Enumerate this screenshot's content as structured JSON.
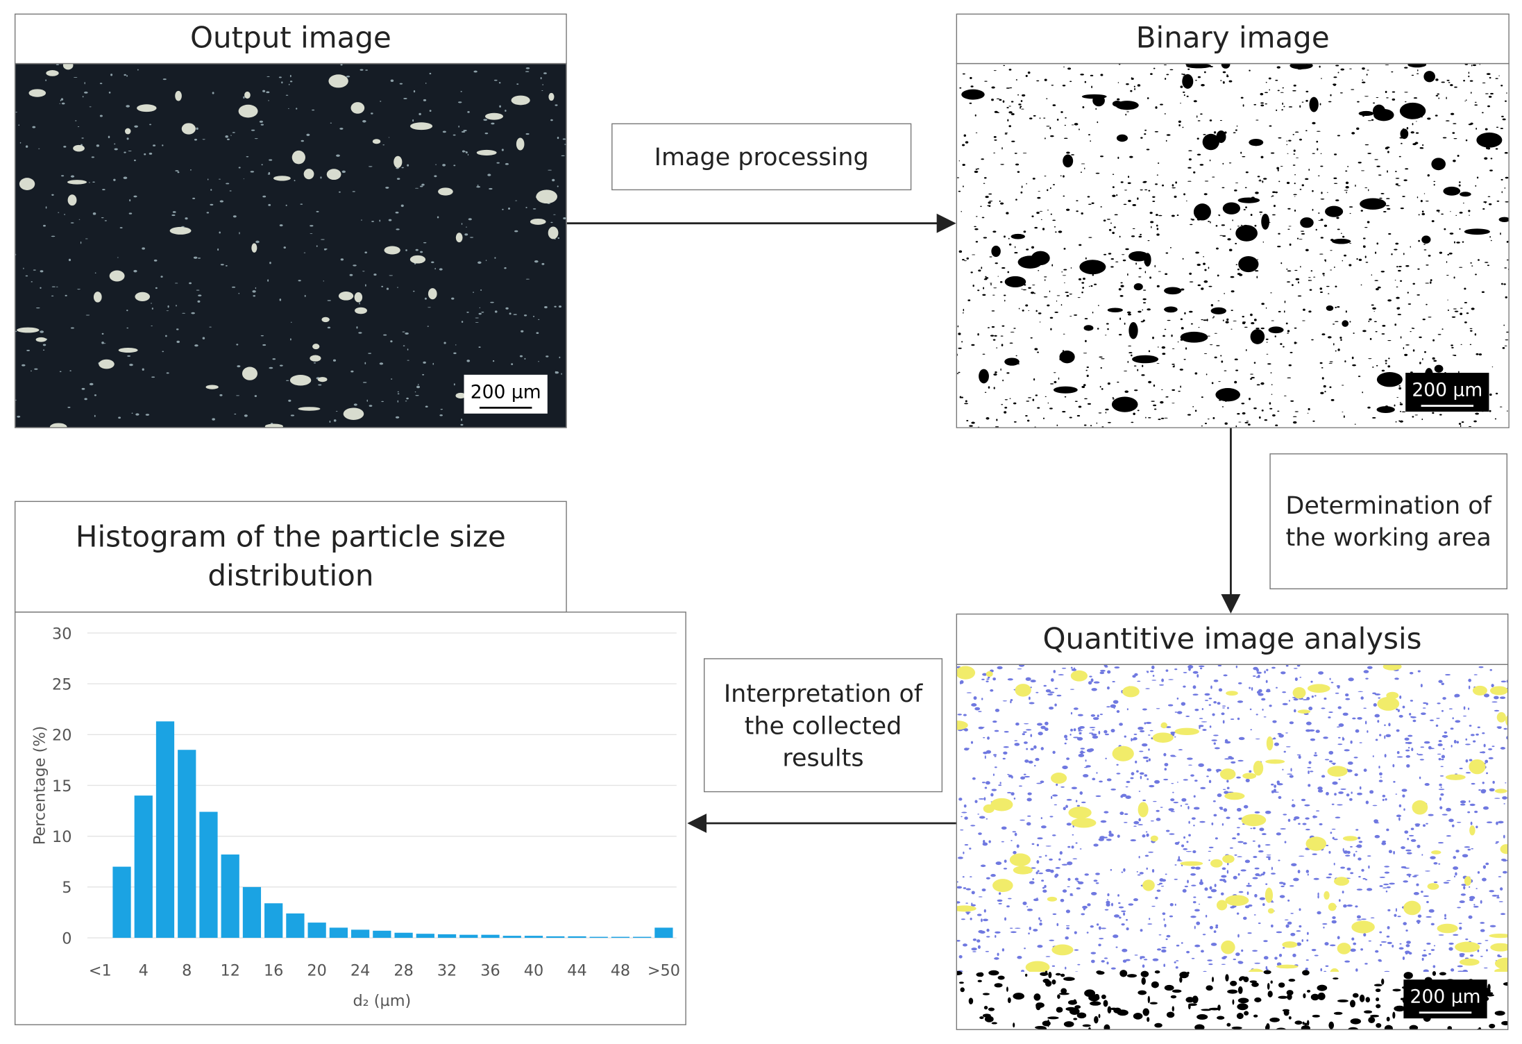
{
  "nodes": [
    {
      "label": "Output image",
      "scale_bar": "200 µm"
    },
    {
      "label": "Binary image",
      "scale_bar": "200 µm"
    },
    {
      "label": "Quantitive image analysis",
      "scale_bar": "200 µm"
    },
    {
      "label": "Histogram of the particle size distribution"
    }
  ],
  "edges": [
    {
      "label": "Image processing"
    },
    {
      "label": "Determination of the working area"
    },
    {
      "label": "Interpretation of the collected results"
    }
  ],
  "chart_data": {
    "type": "bar",
    "categories": [
      "<1",
      null,
      "4",
      null,
      "8",
      null,
      "12",
      null,
      "16",
      null,
      "20",
      null,
      "24",
      null,
      "28",
      null,
      "32",
      null,
      "36",
      null,
      "40",
      null,
      "44",
      null,
      "48",
      null,
      ">50"
    ],
    "values": [
      0,
      7,
      14,
      21.3,
      18.5,
      12.4,
      8.2,
      5,
      3.4,
      2.4,
      1.5,
      1.0,
      0.8,
      0.7,
      0.5,
      0.4,
      0.35,
      0.3,
      0.3,
      0.2,
      0.2,
      0.15,
      0.15,
      0.1,
      0.1,
      0.1,
      1.0
    ],
    "color": "#1ba3e3",
    "xlabel": "d₂ (µm)",
    "ylabel": "Percentage (%)",
    "ylim": [
      0,
      30
    ],
    "yticks": [
      0,
      5,
      10,
      15,
      20,
      25,
      30
    ],
    "grid": true
  }
}
